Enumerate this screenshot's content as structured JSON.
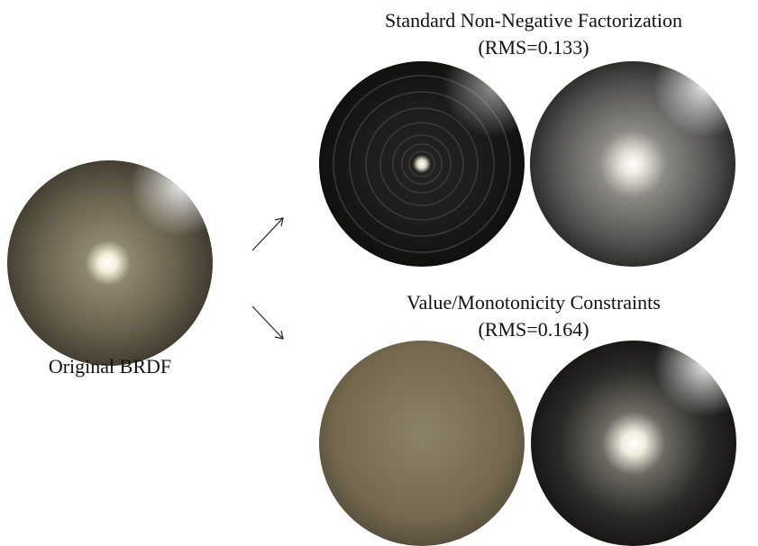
{
  "figure": {
    "original_label": "Original BRDF",
    "panels": [
      {
        "title": "Standard Non-Negative Factorization",
        "rms": "(RMS=0.133)"
      },
      {
        "title": "Value/Monotonicity Constraints",
        "rms": "(RMS=0.164)"
      }
    ]
  }
}
